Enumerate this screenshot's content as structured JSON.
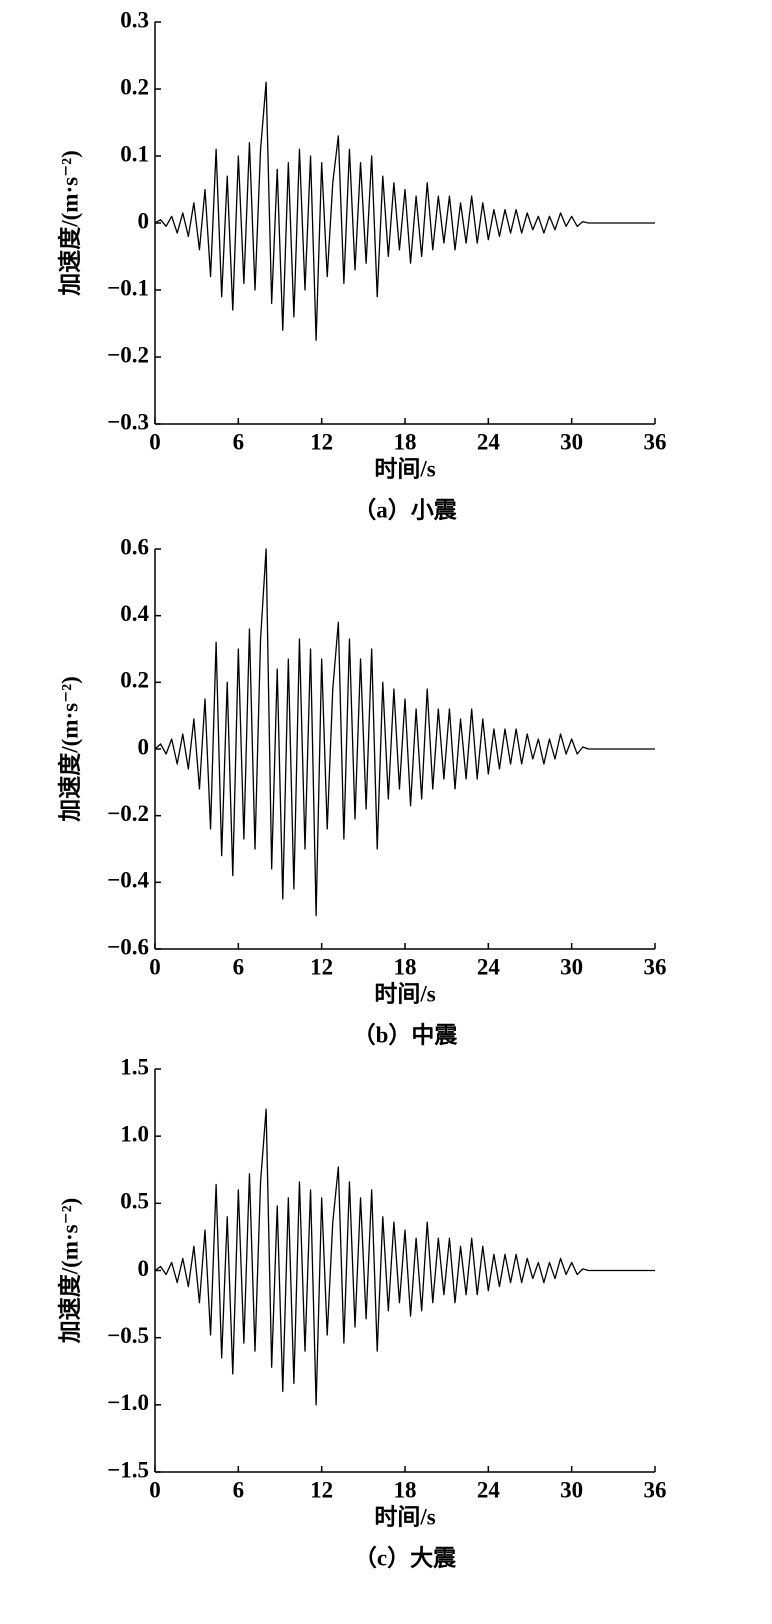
{
  "chart_data": [
    {
      "type": "line",
      "caption": "（a）小震",
      "xlabel": "时间/s",
      "ylabel": "加速度/(m·s⁻²)",
      "color": "#000000",
      "x": [
        0,
        0.4,
        0.8,
        1.2,
        1.6,
        2,
        2.4,
        2.8,
        3.2,
        3.6,
        4,
        4.4,
        4.8,
        5.2,
        5.6,
        6,
        6.4,
        6.8,
        7.2,
        7.6,
        8,
        8.4,
        8.8,
        9.2,
        9.6,
        10,
        10.4,
        10.8,
        11.2,
        11.6,
        12,
        12.4,
        12.8,
        13.2,
        13.6,
        14,
        14.4,
        14.8,
        15.2,
        15.6,
        16,
        16.4,
        16.8,
        17.2,
        17.6,
        18,
        18.4,
        18.8,
        19.2,
        19.6,
        20,
        20.4,
        20.8,
        21.2,
        21.6,
        22,
        22.4,
        22.8,
        23.2,
        23.6,
        24,
        24.4,
        24.8,
        25.2,
        25.6,
        26,
        26.4,
        26.8,
        27.2,
        27.6,
        28,
        28.4,
        28.8,
        29.2,
        29.6,
        30,
        30.4,
        30.8,
        31.2,
        36
      ],
      "values": [
        0,
        0.005,
        -0.005,
        0.01,
        -0.015,
        0.015,
        -0.02,
        0.03,
        -0.04,
        0.05,
        -0.08,
        0.11,
        -0.11,
        0.07,
        -0.13,
        0.1,
        -0.09,
        0.12,
        -0.1,
        0.11,
        0.21,
        -0.12,
        0.08,
        -0.16,
        0.09,
        -0.14,
        0.11,
        -0.1,
        0.1,
        -0.175,
        0.09,
        -0.08,
        0.06,
        0.13,
        -0.09,
        0.11,
        -0.07,
        0.09,
        -0.06,
        0.1,
        -0.11,
        0.07,
        -0.05,
        0.06,
        -0.04,
        0.05,
        -0.06,
        0.04,
        -0.05,
        0.06,
        -0.04,
        0.04,
        -0.03,
        0.04,
        -0.04,
        0.03,
        -0.03,
        0.04,
        -0.03,
        0.03,
        -0.025,
        0.02,
        -0.02,
        0.02,
        -0.015,
        0.02,
        -0.015,
        0.015,
        -0.01,
        0.01,
        -0.015,
        0.01,
        -0.01,
        0.015,
        -0.005,
        0.01,
        -0.005,
        0.002,
        0,
        0
      ],
      "xlim": [
        0,
        36
      ],
      "xticks": [
        0,
        6,
        12,
        18,
        24,
        30,
        36
      ],
      "ylim": [
        -0.3,
        0.3
      ],
      "yticks": [
        0.3,
        0.2,
        0.1,
        0,
        {
          "value": -0.1,
          "label": "−0.1"
        },
        {
          "value": -0.2,
          "label": "−0.2"
        },
        {
          "value": -0.3,
          "label": "−0.3"
        }
      ]
    },
    {
      "type": "line",
      "caption": "（b）中震",
      "xlabel": "时间/s",
      "ylabel": "加速度/(m·s⁻²)",
      "color": "#000000",
      "x": [
        0,
        0.4,
        0.8,
        1.2,
        1.6,
        2,
        2.4,
        2.8,
        3.2,
        3.6,
        4,
        4.4,
        4.8,
        5.2,
        5.6,
        6,
        6.4,
        6.8,
        7.2,
        7.6,
        8,
        8.4,
        8.8,
        9.2,
        9.6,
        10,
        10.4,
        10.8,
        11.2,
        11.6,
        12,
        12.4,
        12.8,
        13.2,
        13.6,
        14,
        14.4,
        14.8,
        15.2,
        15.6,
        16,
        16.4,
        16.8,
        17.2,
        17.6,
        18,
        18.4,
        18.8,
        19.2,
        19.6,
        20,
        20.4,
        20.8,
        21.2,
        21.6,
        22,
        22.4,
        22.8,
        23.2,
        23.6,
        24,
        24.4,
        24.8,
        25.2,
        25.6,
        26,
        26.4,
        26.8,
        27.2,
        27.6,
        28,
        28.4,
        28.8,
        29.2,
        29.6,
        30,
        30.4,
        30.8,
        31.2,
        36
      ],
      "values": [
        0,
        0.015,
        -0.015,
        0.03,
        -0.045,
        0.045,
        -0.06,
        0.09,
        -0.12,
        0.15,
        -0.24,
        0.32,
        -0.32,
        0.2,
        -0.38,
        0.3,
        -0.27,
        0.36,
        -0.3,
        0.33,
        0.6,
        -0.36,
        0.24,
        -0.45,
        0.27,
        -0.42,
        0.33,
        -0.3,
        0.3,
        -0.5,
        0.27,
        -0.24,
        0.18,
        0.38,
        -0.27,
        0.33,
        -0.21,
        0.27,
        -0.18,
        0.3,
        -0.3,
        0.2,
        -0.15,
        0.18,
        -0.12,
        0.15,
        -0.17,
        0.12,
        -0.15,
        0.18,
        -0.12,
        0.12,
        -0.09,
        0.12,
        -0.12,
        0.09,
        -0.09,
        0.12,
        -0.09,
        0.09,
        -0.075,
        0.06,
        -0.06,
        0.06,
        -0.045,
        0.06,
        -0.045,
        0.045,
        -0.03,
        0.03,
        -0.045,
        0.03,
        -0.03,
        0.045,
        -0.015,
        0.03,
        -0.015,
        0.006,
        0,
        0
      ],
      "xlim": [
        0,
        36
      ],
      "xticks": [
        0,
        6,
        12,
        18,
        24,
        30,
        36
      ],
      "ylim": [
        -0.6,
        0.6
      ],
      "yticks": [
        0.6,
        0.4,
        0.2,
        0,
        {
          "value": -0.2,
          "label": "−0.2"
        },
        {
          "value": -0.4,
          "label": "−0.4"
        },
        {
          "value": -0.6,
          "label": "−0.6"
        }
      ]
    },
    {
      "type": "line",
      "caption": "（c）大震",
      "xlabel": "时间/s",
      "ylabel": "加速度/(m·s⁻²)",
      "color": "#000000",
      "x": [
        0,
        0.4,
        0.8,
        1.2,
        1.6,
        2,
        2.4,
        2.8,
        3.2,
        3.6,
        4,
        4.4,
        4.8,
        5.2,
        5.6,
        6,
        6.4,
        6.8,
        7.2,
        7.6,
        8,
        8.4,
        8.8,
        9.2,
        9.6,
        10,
        10.4,
        10.8,
        11.2,
        11.6,
        12,
        12.4,
        12.8,
        13.2,
        13.6,
        14,
        14.4,
        14.8,
        15.2,
        15.6,
        16,
        16.4,
        16.8,
        17.2,
        17.6,
        18,
        18.4,
        18.8,
        19.2,
        19.6,
        20,
        20.4,
        20.8,
        21.2,
        21.6,
        22,
        22.4,
        22.8,
        23.2,
        23.6,
        24,
        24.4,
        24.8,
        25.2,
        25.6,
        26,
        26.4,
        26.8,
        27.2,
        27.6,
        28,
        28.4,
        28.8,
        29.2,
        29.6,
        30,
        30.4,
        30.8,
        31.2,
        36
      ],
      "values": [
        0,
        0.03,
        -0.03,
        0.06,
        -0.09,
        0.09,
        -0.12,
        0.18,
        -0.24,
        0.3,
        -0.48,
        0.64,
        -0.65,
        0.4,
        -0.77,
        0.6,
        -0.54,
        0.72,
        -0.6,
        0.66,
        1.2,
        -0.72,
        0.48,
        -0.9,
        0.54,
        -0.84,
        0.66,
        -0.6,
        0.6,
        -1.0,
        0.54,
        -0.48,
        0.36,
        0.77,
        -0.54,
        0.66,
        -0.42,
        0.54,
        -0.36,
        0.6,
        -0.6,
        0.4,
        -0.3,
        0.36,
        -0.24,
        0.3,
        -0.34,
        0.24,
        -0.3,
        0.36,
        -0.24,
        0.24,
        -0.18,
        0.24,
        -0.24,
        0.18,
        -0.18,
        0.24,
        -0.18,
        0.18,
        -0.15,
        0.12,
        -0.12,
        0.12,
        -0.09,
        0.12,
        -0.09,
        0.09,
        -0.06,
        0.06,
        -0.09,
        0.06,
        -0.06,
        0.09,
        -0.03,
        0.06,
        -0.03,
        0.012,
        0,
        0
      ],
      "xlim": [
        0,
        36
      ],
      "xticks": [
        0,
        6,
        12,
        18,
        24,
        30,
        36
      ],
      "ylim": [
        -1.5,
        1.5
      ],
      "yticks": [
        {
          "value": 1.5,
          "label": "1.5"
        },
        {
          "value": 1.0,
          "label": "1.0"
        },
        0.5,
        0,
        {
          "value": -0.5,
          "label": "−0.5"
        },
        {
          "value": -1.0,
          "label": "−1.0"
        },
        {
          "value": -1.5,
          "label": "−1.5"
        }
      ]
    }
  ]
}
